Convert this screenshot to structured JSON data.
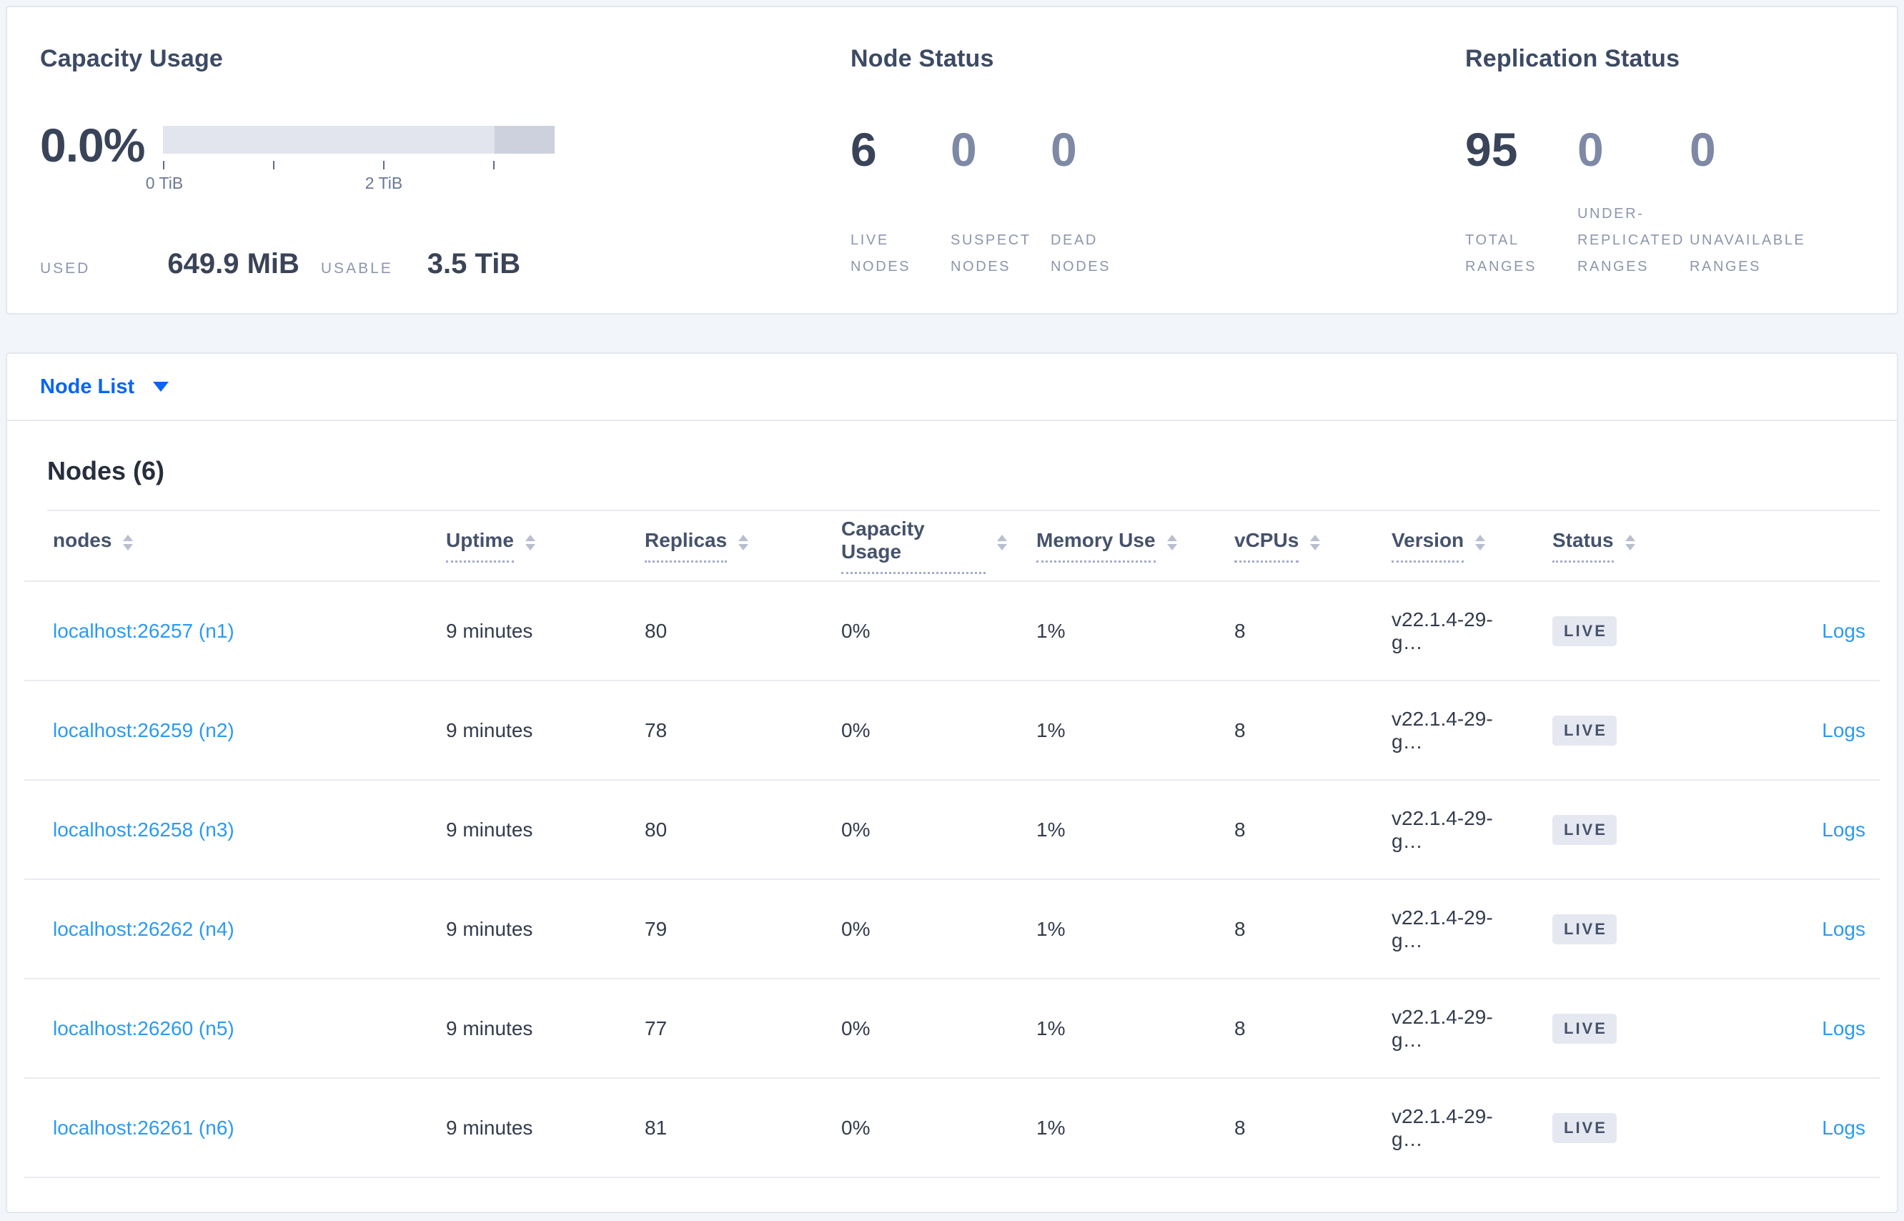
{
  "summary": {
    "capacity": {
      "title": "Capacity Usage",
      "percent": "0.0%",
      "tick_labels": [
        "0 TiB",
        "2 TiB"
      ],
      "used_label": "USED",
      "used_value": "649.9 MiB",
      "usable_label": "USABLE",
      "usable_value": "3.5 TiB"
    },
    "node_status": {
      "title": "Node Status",
      "stats": [
        {
          "value": "6",
          "label": "LIVE NODES"
        },
        {
          "value": "0",
          "label": "SUSPECT NODES"
        },
        {
          "value": "0",
          "label": "DEAD NODES"
        }
      ]
    },
    "replication_status": {
      "title": "Replication Status",
      "stats": [
        {
          "value": "95",
          "label": "TOTAL RANGES"
        },
        {
          "value": "0",
          "label": "UNDER-REPLICATED RANGES"
        },
        {
          "value": "0",
          "label": "UNAVAILABLE RANGES"
        }
      ]
    }
  },
  "node_list": {
    "dropdown_label": "Node List"
  },
  "nodes_table": {
    "title": "Nodes (6)",
    "logs_label": "Logs",
    "columns": [
      "nodes",
      "Uptime",
      "Replicas",
      "Capacity Usage",
      "Memory Use",
      "vCPUs",
      "Version",
      "Status",
      ""
    ],
    "rows": [
      {
        "address": "localhost:26257 (n1)",
        "uptime": "9 minutes",
        "replicas": "80",
        "capacity": "0%",
        "memory": "1%",
        "vcpus": "8",
        "version": "v22.1.4-29-g…",
        "status": "LIVE"
      },
      {
        "address": "localhost:26259 (n2)",
        "uptime": "9 minutes",
        "replicas": "78",
        "capacity": "0%",
        "memory": "1%",
        "vcpus": "8",
        "version": "v22.1.4-29-g…",
        "status": "LIVE"
      },
      {
        "address": "localhost:26258 (n3)",
        "uptime": "9 minutes",
        "replicas": "80",
        "capacity": "0%",
        "memory": "1%",
        "vcpus": "8",
        "version": "v22.1.4-29-g…",
        "status": "LIVE"
      },
      {
        "address": "localhost:26262 (n4)",
        "uptime": "9 minutes",
        "replicas": "79",
        "capacity": "0%",
        "memory": "1%",
        "vcpus": "8",
        "version": "v22.1.4-29-g…",
        "status": "LIVE"
      },
      {
        "address": "localhost:26260 (n5)",
        "uptime": "9 minutes",
        "replicas": "77",
        "capacity": "0%",
        "memory": "1%",
        "vcpus": "8",
        "version": "v22.1.4-29-g…",
        "status": "LIVE"
      },
      {
        "address": "localhost:26261 (n6)",
        "uptime": "9 minutes",
        "replicas": "81",
        "capacity": "0%",
        "memory": "1%",
        "vcpus": "8",
        "version": "v22.1.4-29-g…",
        "status": "LIVE"
      }
    ]
  },
  "colors": {
    "dropdown_blue": "#0b64f4",
    "link_blue": "#2b9af3",
    "dark_text": "#394459",
    "muted_number": "#7e89a6",
    "label_gray": "#8d96ac",
    "badge_bg": "#e5e8f0",
    "badge_text": "#46526b",
    "bar_light": "#e2e5ee",
    "bar_dark": "#cdd1de"
  }
}
